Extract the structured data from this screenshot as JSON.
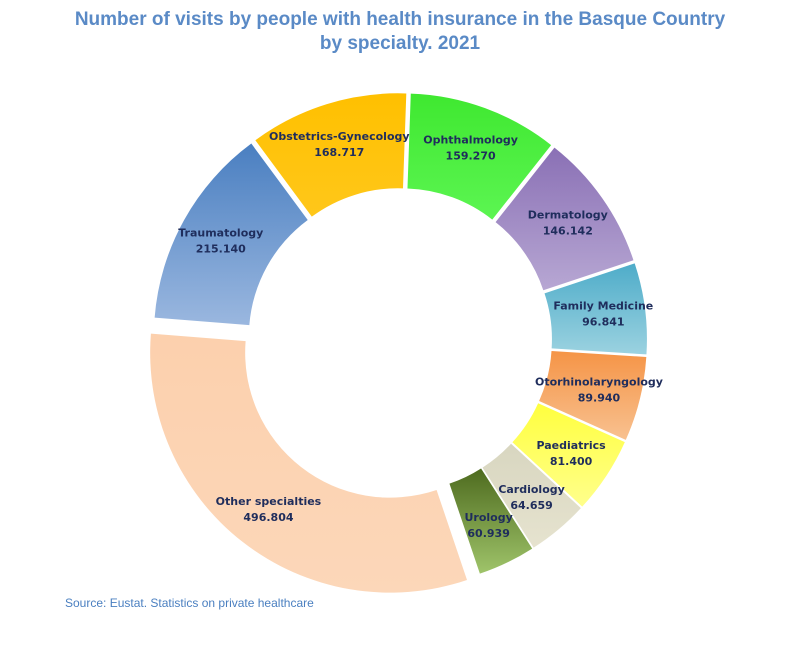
{
  "title_line1": "Number of visits by people with health insurance in the Basque Country",
  "title_line2": "by specialty. 2021",
  "source": "Source: Eustat. Statistics on private healthcare",
  "chart_data": {
    "type": "pie",
    "style": "donut, exploded slices",
    "title": "Number of visits by people with health insurance in the Basque Country by specialty. 2021",
    "legend": "none",
    "categories": [
      "Ophthalmology",
      "Dermatology",
      "Family Medicine",
      "Otorhinolaryngology",
      "Paediatrics",
      "Cardiology",
      "Urology",
      "Other specialties",
      "Traumatology",
      "Obstetrics-Gynecology"
    ],
    "values": [
      159270,
      146142,
      96841,
      89940,
      81400,
      64659,
      60939,
      496804,
      215140,
      168717
    ],
    "value_labels": [
      "159.270",
      "146.142",
      "96.841",
      "89.940",
      "81.400",
      "64.659",
      "60.939",
      "496.804",
      "215.140",
      "168.717"
    ],
    "colors": [
      [
        "#3fe830",
        "#5cf552"
      ],
      [
        "#8a70b5",
        "#b7a7d3"
      ],
      [
        "#4eacc9",
        "#9bd2e0"
      ],
      [
        "#f59446",
        "#f8c190"
      ],
      [
        "#ffff3e",
        "#ffff8c"
      ],
      [
        "#d8d6c0",
        "#e6e3cf"
      ],
      [
        "#4e6b1f",
        "#9fc46a"
      ],
      [
        "#fcd0ad",
        "#fcd7b9"
      ],
      [
        "#4a7fc1",
        "#9ab7df"
      ],
      [
        "#ffc000",
        "#ffc71a"
      ]
    ]
  }
}
